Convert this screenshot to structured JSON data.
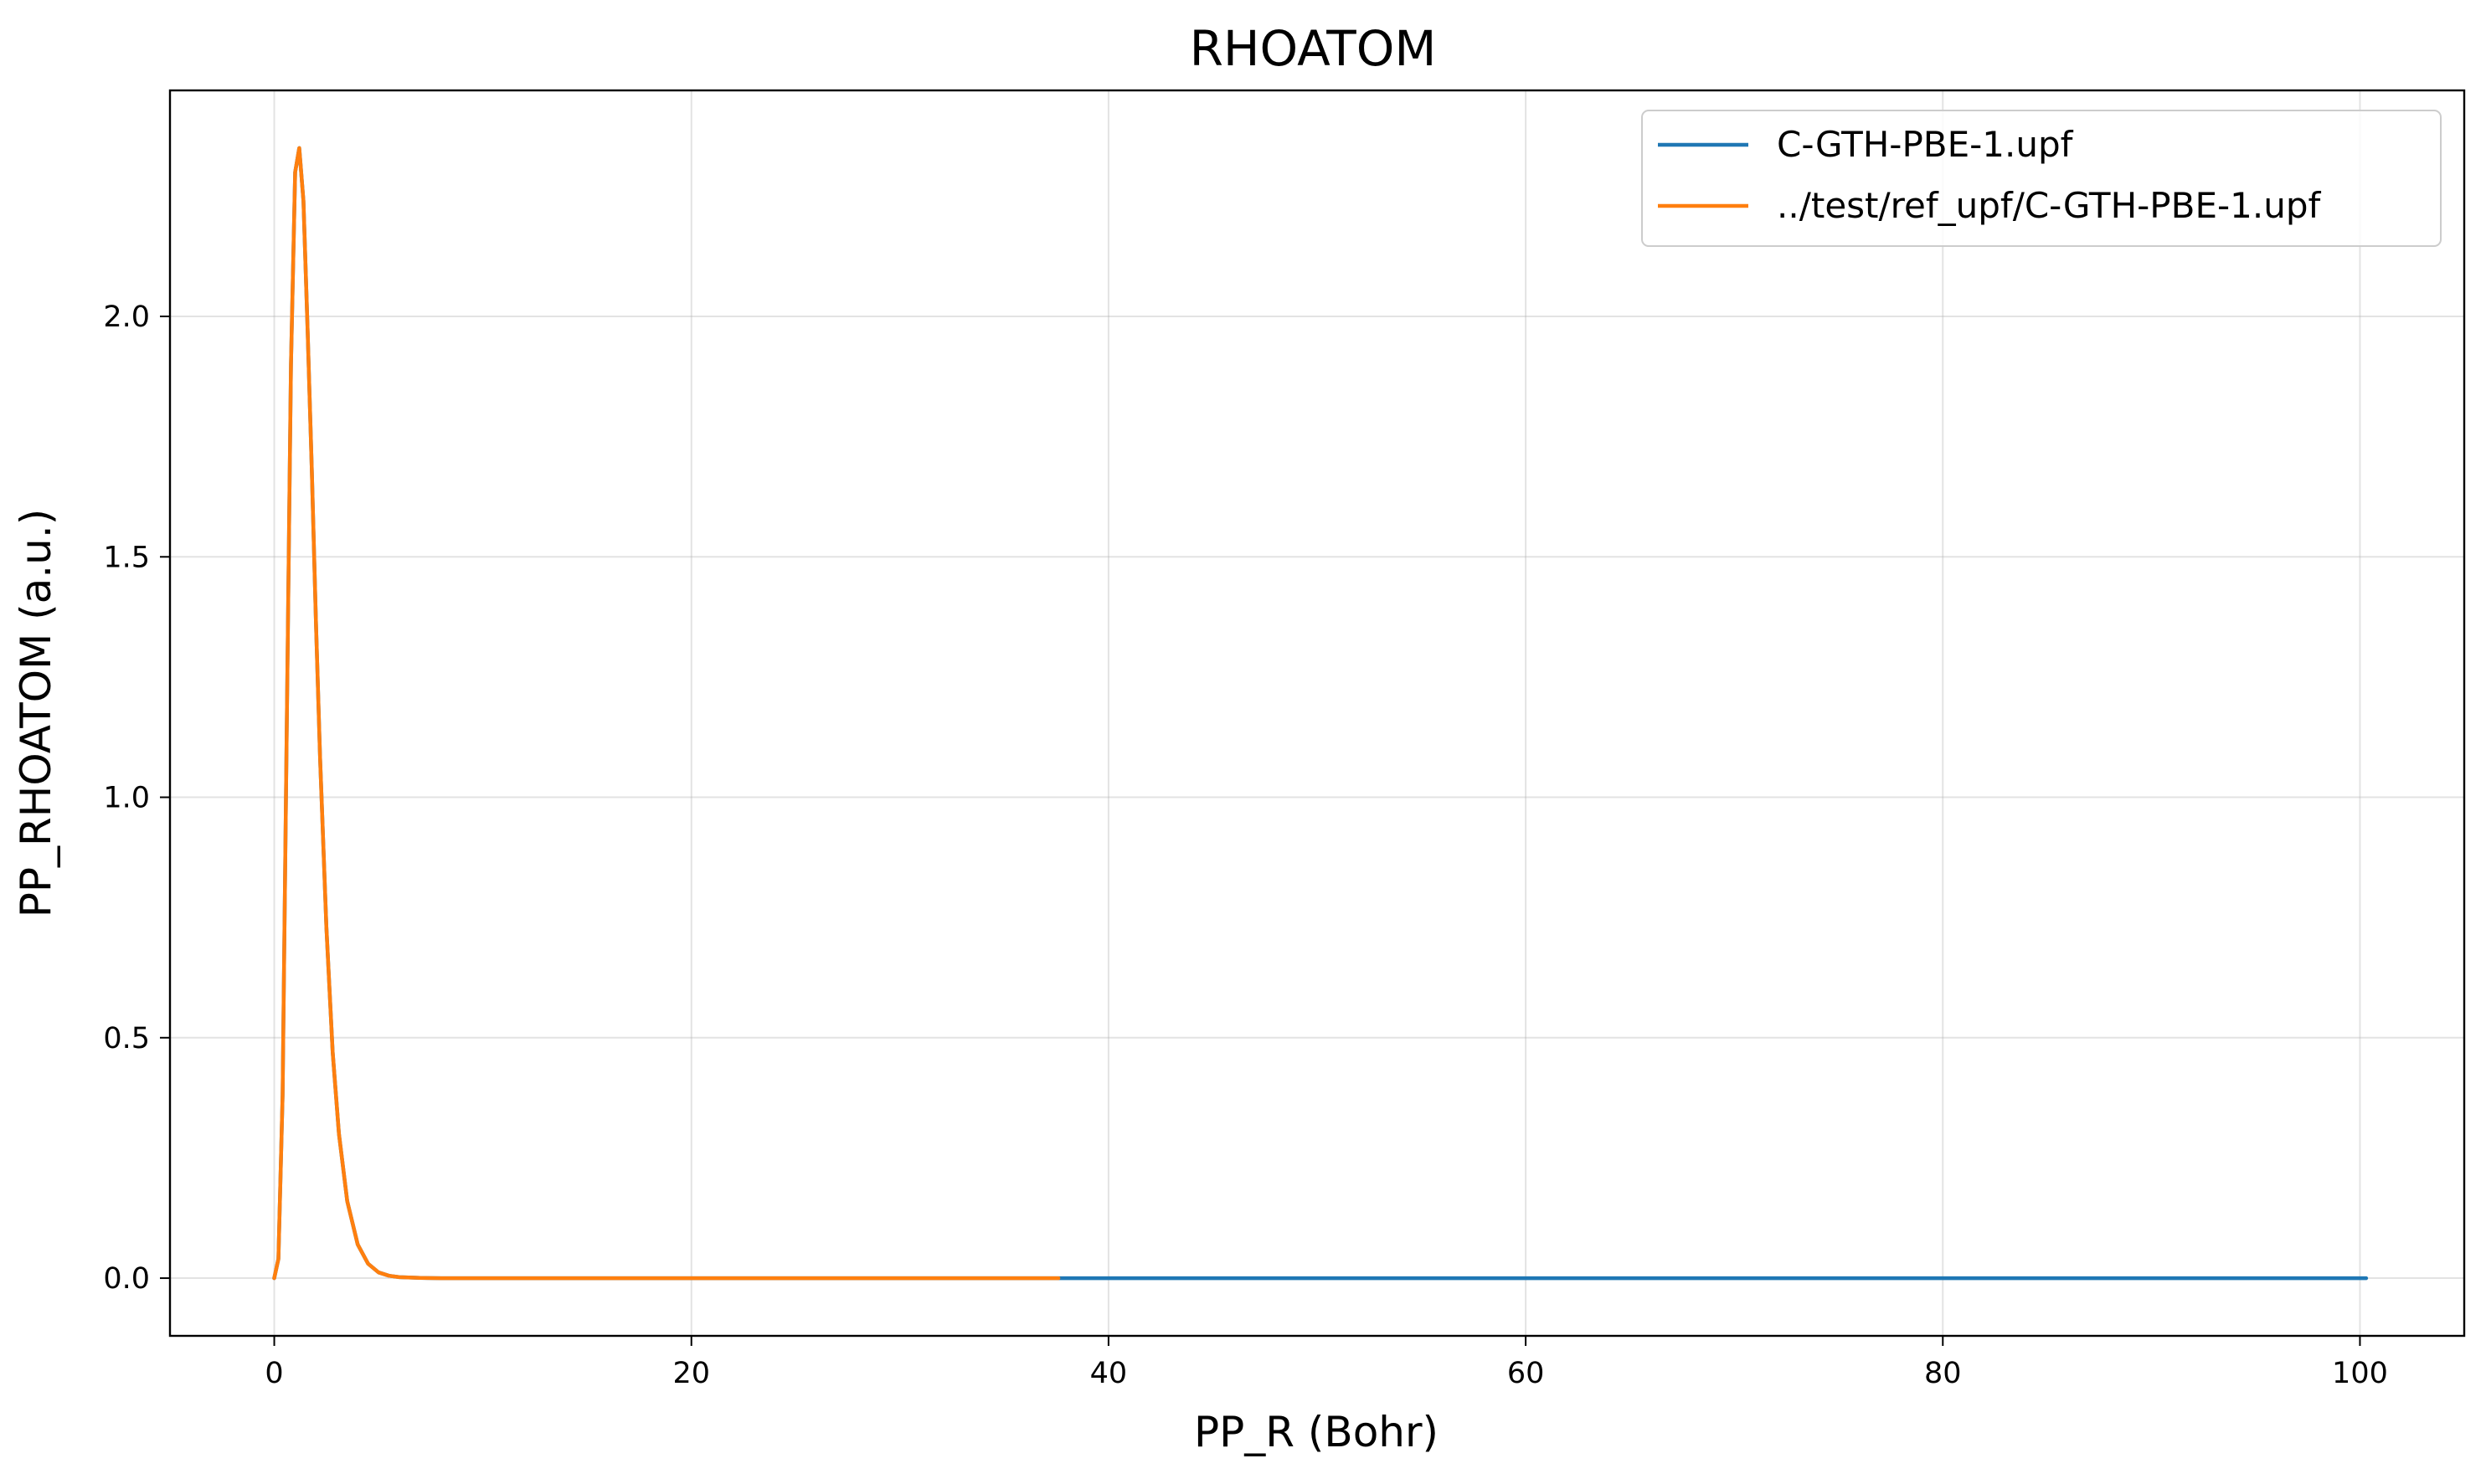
{
  "chart_data": {
    "type": "line",
    "title": "RHOATOM",
    "xlabel": "PP_R (Bohr)",
    "ylabel": "PP_RHOATOM (a.u.)",
    "xlim": [
      -5,
      105
    ],
    "ylim": [
      -0.12,
      2.47
    ],
    "xticks": [
      0,
      20,
      40,
      60,
      80,
      100
    ],
    "yticks": [
      0.0,
      0.5,
      1.0,
      1.5,
      2.0
    ],
    "xtick_labels": [
      "0",
      "20",
      "40",
      "60",
      "80",
      "100"
    ],
    "ytick_labels": [
      "0.0",
      "0.5",
      "1.0",
      "1.5",
      "2.0"
    ],
    "grid": true,
    "legend_position": "upper right",
    "series": [
      {
        "name": "C-GTH-PBE-1.upf",
        "color": "#1f77b4",
        "x": [
          0.0,
          0.2,
          0.4,
          0.6,
          0.8,
          1.0,
          1.2,
          1.4,
          1.6,
          1.8,
          2.0,
          2.2,
          2.5,
          2.8,
          3.1,
          3.5,
          4.0,
          4.5,
          5.0,
          5.5,
          6.0,
          7.0,
          8.0,
          9.0,
          10.0,
          20.0,
          30.0,
          40.0,
          50.0,
          60.0,
          70.0,
          80.0,
          90.0,
          100.3
        ],
        "y": [
          0.0,
          0.04,
          0.38,
          1.15,
          1.9,
          2.3,
          2.35,
          2.24,
          1.97,
          1.68,
          1.36,
          1.08,
          0.73,
          0.47,
          0.3,
          0.16,
          0.07,
          0.03,
          0.012,
          0.005,
          0.002,
          0.0005,
          0.0,
          0.0,
          0.0,
          0.0,
          0.0,
          0.0,
          0.0,
          0.0,
          0.0,
          0.0,
          0.0,
          0.0
        ]
      },
      {
        "name": "../test/ref_upf/C-GTH-PBE-1.upf",
        "color": "#ff7f0e",
        "x": [
          0.0,
          0.2,
          0.4,
          0.6,
          0.8,
          1.0,
          1.2,
          1.4,
          1.6,
          1.8,
          2.0,
          2.2,
          2.5,
          2.8,
          3.1,
          3.5,
          4.0,
          4.5,
          5.0,
          5.5,
          6.0,
          7.0,
          8.0,
          9.0,
          10.0,
          20.0,
          30.0,
          37.6
        ],
        "y": [
          0.0,
          0.04,
          0.38,
          1.15,
          1.9,
          2.3,
          2.35,
          2.24,
          1.97,
          1.68,
          1.36,
          1.08,
          0.73,
          0.47,
          0.3,
          0.16,
          0.07,
          0.03,
          0.012,
          0.005,
          0.002,
          0.0005,
          0.0,
          0.0,
          0.0,
          0.0,
          0.0,
          0.0
        ]
      }
    ]
  }
}
